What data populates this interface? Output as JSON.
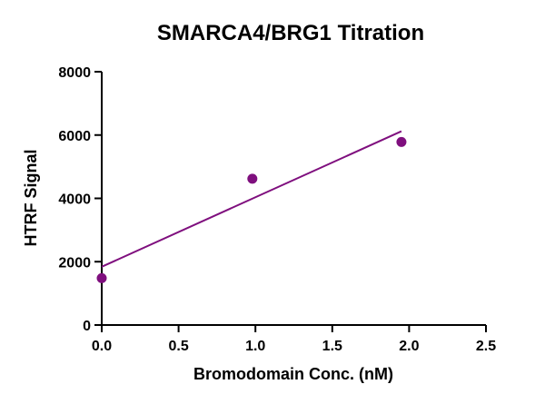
{
  "chart_data": {
    "type": "scatter",
    "title": "SMARCA4/BRG1 Titration",
    "xlabel": "Bromodomain Conc. (nM)",
    "ylabel": "HTRF Signal",
    "xlim": [
      0,
      2.5
    ],
    "ylim": [
      0,
      8000
    ],
    "x_ticks": [
      "0.0",
      "0.5",
      "1.0",
      "1.5",
      "2.0",
      "2.5"
    ],
    "x_tick_values": [
      0,
      0.5,
      1.0,
      1.5,
      2.0,
      2.5
    ],
    "y_ticks": [
      "0",
      "2000",
      "4000",
      "6000",
      "8000"
    ],
    "y_tick_values": [
      0,
      2000,
      4000,
      6000,
      8000
    ],
    "grid": false,
    "legend": "none",
    "series": [
      {
        "name": "HTRF Signal",
        "x": [
          0.0,
          0.98,
          1.95
        ],
        "y": [
          1480,
          4620,
          5780
        ]
      }
    ],
    "fit_line": {
      "x": [
        0.0,
        1.95
      ],
      "y": [
        1840,
        6120
      ]
    },
    "colors": {
      "points": "#7f0f7e",
      "fit_line": "#7f0f7e",
      "axes": "#000000"
    }
  }
}
